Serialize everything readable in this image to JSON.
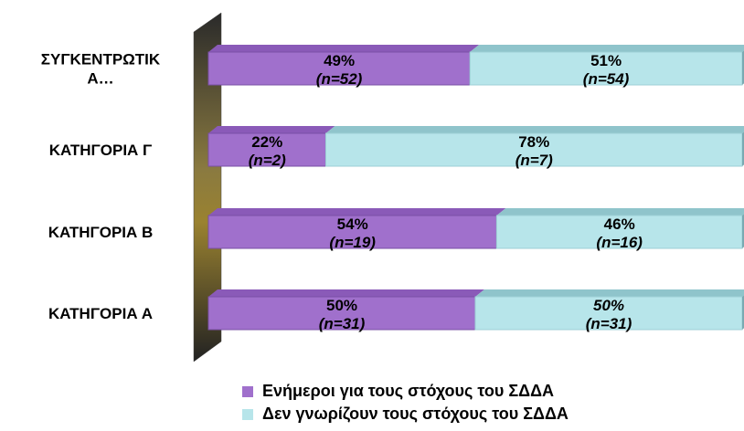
{
  "chart_data": {
    "type": "bar",
    "orientation": "horizontal",
    "stacked": "percent",
    "categories": [
      "ΣΥΓΚΕΝΤΡΩΤΙΚ Α…",
      "ΚΑΤΗΓΟΡΙΑ Γ",
      "ΚΑΤΗΓΟΡΙΑ Β",
      "ΚΑΤΗΓΟΡΙΑ Α"
    ],
    "category_lines": [
      [
        "ΣΥΓΚΕΝΤΡΩΤΙΚ",
        "Α…"
      ],
      [
        "ΚΑΤΗΓΟΡΙΑ Γ"
      ],
      [
        "ΚΑΤΗΓΟΡΙΑ Β"
      ],
      [
        "ΚΑΤΗΓΟΡΙΑ Α"
      ]
    ],
    "series": [
      {
        "name": "Ενήμεροι για τους στόχους του ΣΔΔΑ",
        "color": "#A070CC",
        "values": [
          49,
          22,
          54,
          50
        ],
        "labels": [
          [
            "49%",
            "(n=52)"
          ],
          [
            "22%",
            "(n=2)"
          ],
          [
            "54%",
            "(n=19)"
          ],
          [
            "50%",
            "(n=31)"
          ]
        ]
      },
      {
        "name": "Δεν γνωρίζουν τους στόχους του ΣΔΔΑ",
        "color": "#B7E5EA",
        "values": [
          51,
          78,
          46,
          50
        ],
        "labels": [
          [
            "51%",
            "(n=54)"
          ],
          [
            "78%",
            "(n=7)"
          ],
          [
            "46%",
            "(n=16)"
          ],
          [
            "50%",
            "(n=31)"
          ]
        ]
      }
    ],
    "xlim": [
      0,
      100
    ],
    "grid": false,
    "legend_position": "bottom"
  }
}
